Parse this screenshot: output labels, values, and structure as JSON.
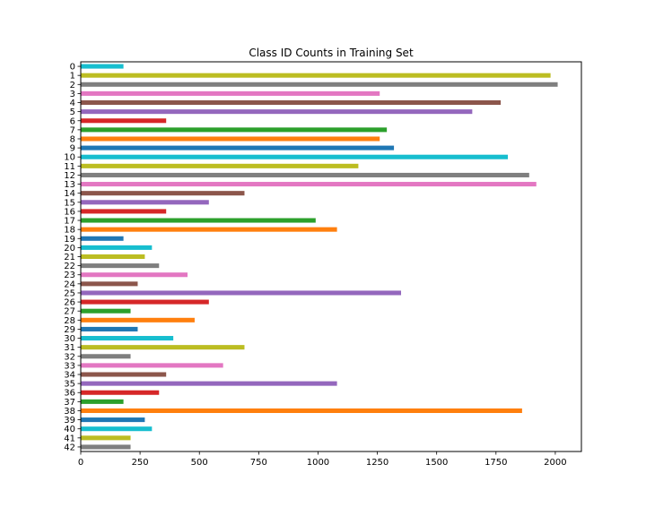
{
  "chart_data": {
    "type": "bar",
    "orientation": "horizontal",
    "title": "Class ID Counts in Training Set",
    "xlabel": "",
    "ylabel": "",
    "xlim": [
      0,
      2110
    ],
    "xticks": [
      0,
      250,
      500,
      750,
      1000,
      1250,
      1500,
      1750,
      2000
    ],
    "grid": false,
    "categories": [
      "0",
      "1",
      "2",
      "3",
      "4",
      "5",
      "6",
      "7",
      "8",
      "9",
      "10",
      "11",
      "12",
      "13",
      "14",
      "15",
      "16",
      "17",
      "18",
      "19",
      "20",
      "21",
      "22",
      "23",
      "24",
      "25",
      "26",
      "27",
      "28",
      "29",
      "30",
      "31",
      "32",
      "33",
      "34",
      "35",
      "36",
      "37",
      "38",
      "39",
      "40",
      "41",
      "42"
    ],
    "values": [
      180,
      1980,
      2010,
      1260,
      1770,
      1650,
      360,
      1290,
      1260,
      1320,
      1800,
      1170,
      1890,
      1920,
      690,
      540,
      360,
      990,
      1080,
      180,
      300,
      270,
      330,
      450,
      240,
      1350,
      540,
      210,
      480,
      240,
      390,
      690,
      210,
      600,
      360,
      1080,
      330,
      180,
      1860,
      270,
      300,
      210,
      210
    ],
    "colors": [
      "#17becf",
      "#bcbd22",
      "#7f7f7f",
      "#e377c2",
      "#8c564b",
      "#9467bd",
      "#d62728",
      "#2ca02c",
      "#ff7f0e",
      "#1f77b4"
    ]
  }
}
